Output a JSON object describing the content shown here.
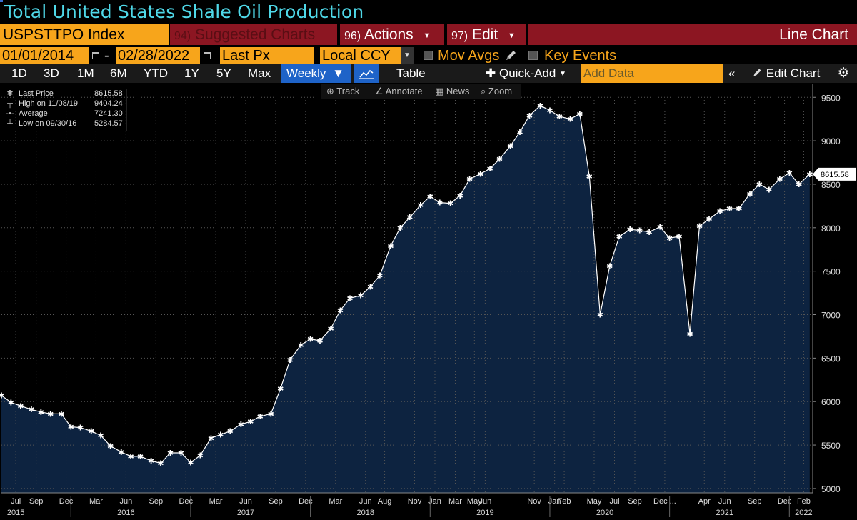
{
  "header": {
    "title": "Total United States Shale Oil Production"
  },
  "toolbar": {
    "ticker": "USPSTTPO Index",
    "suggested_num": "94)",
    "suggested_label": "Suggested Charts",
    "actions_num": "96)",
    "actions_label": "Actions",
    "edit_num": "97)",
    "edit_label": "Edit",
    "chart_type_label": "Line Chart"
  },
  "controls": {
    "start_date": "01/01/2014",
    "date_separator": "-",
    "end_date": "02/28/2022",
    "field": "Last Px",
    "currency": "Local CCY",
    "mov_avgs": "Mov Avgs",
    "key_events": "Key Events"
  },
  "range_bar": {
    "buttons": [
      "1D",
      "3D",
      "1M",
      "6M",
      "YTD",
      "1Y",
      "5Y",
      "Max"
    ],
    "frequency": "Weekly",
    "table_label": "Table",
    "quick_add": "Quick-Add",
    "add_data_placeholder": "Add Data",
    "edit_chart": "Edit Chart"
  },
  "legend": {
    "rows": [
      {
        "icon": "✱",
        "label": "Last Price",
        "value": "8615.58"
      },
      {
        "icon": "┬",
        "label": "High on 11/08/19",
        "value": "9404.24"
      },
      {
        "icon": "-•-",
        "label": "Average",
        "value": "7241.30"
      },
      {
        "icon": "┴",
        "label": "Low on 09/30/16",
        "value": "5284.57"
      }
    ]
  },
  "chart_tools": {
    "track": "Track",
    "annotate": "Annotate",
    "news": "News",
    "zoom": "Zoom"
  },
  "colors": {
    "area_fill": "#0d2340",
    "line": "#ffffff",
    "accent_orange": "#f7a51b",
    "bar_red": "#8c1622",
    "title_cyan": "#4fd8e8",
    "selected_blue": "#1e63c8"
  },
  "chart_data": {
    "type": "area",
    "title": "Total United States Shale Oil Production",
    "ylim": [
      4950,
      9650
    ],
    "y_ticks": [
      5000,
      5500,
      6000,
      6500,
      7000,
      7500,
      8000,
      8500,
      9000,
      9500
    ],
    "last_value_label": "8615.58",
    "x_month_ticks": [
      {
        "label": "Jul",
        "date": 2015.54
      },
      {
        "label": "Sep",
        "date": 2015.71
      },
      {
        "label": "Dec",
        "date": 2015.96
      },
      {
        "label": "Mar",
        "date": 2016.21
      },
      {
        "label": "Jun",
        "date": 2016.46
      },
      {
        "label": "Sep",
        "date": 2016.71
      },
      {
        "label": "Dec",
        "date": 2016.96
      },
      {
        "label": "Mar",
        "date": 2017.21
      },
      {
        "label": "Jun",
        "date": 2017.46
      },
      {
        "label": "Sep",
        "date": 2017.71
      },
      {
        "label": "Dec",
        "date": 2017.96
      },
      {
        "label": "Mar",
        "date": 2018.21
      },
      {
        "label": "Jun",
        "date": 2018.46
      },
      {
        "label": "Aug",
        "date": 2018.62
      },
      {
        "label": "Nov",
        "date": 2018.87
      },
      {
        "label": "Jan",
        "date": 2019.04
      },
      {
        "label": "Mar",
        "date": 2019.21
      },
      {
        "label": "May",
        "date": 2019.37
      },
      {
        "label": "Jun",
        "date": 2019.46
      },
      {
        "label": "Nov",
        "date": 2019.87
      },
      {
        "label": "Jan",
        "date": 2020.04
      },
      {
        "label": "Feb",
        "date": 2020.12
      },
      {
        "label": "May",
        "date": 2020.37
      },
      {
        "label": "Jul",
        "date": 2020.54
      },
      {
        "label": "Sep",
        "date": 2020.71
      },
      {
        "label": "Dec ...",
        "date": 2020.96
      },
      {
        "label": "Apr",
        "date": 2021.29
      },
      {
        "label": "Jun",
        "date": 2021.46
      },
      {
        "label": "Sep",
        "date": 2021.71
      },
      {
        "label": "Dec",
        "date": 2021.96
      },
      {
        "label": "Feb",
        "date": 2022.12
      }
    ],
    "x_year_ticks": [
      {
        "label": "2015",
        "date": 2015.54
      },
      {
        "label": "2016",
        "date": 2016.46
      },
      {
        "label": "2017",
        "date": 2017.46
      },
      {
        "label": "2018",
        "date": 2018.46
      },
      {
        "label": "2019",
        "date": 2019.46
      },
      {
        "label": "2020",
        "date": 2020.46
      },
      {
        "label": "2021",
        "date": 2021.46
      },
      {
        "label": "2022",
        "date": 2022.12
      }
    ],
    "x_year_separators": [
      2016.0,
      2017.0,
      2018.0,
      2019.0,
      2020.0,
      2021.0,
      2022.0
    ],
    "x_grid": [
      2015.54,
      2015.71,
      2015.96,
      2016.21,
      2016.46,
      2016.71,
      2016.96,
      2017.21,
      2017.46,
      2017.71,
      2017.96,
      2018.21,
      2018.46,
      2018.62,
      2018.87,
      2019.04,
      2019.21,
      2019.37,
      2019.46,
      2019.87,
      2020.04,
      2020.12,
      2020.37,
      2020.54,
      2020.71,
      2020.96,
      2021.29,
      2021.46,
      2021.71,
      2021.96,
      2022.12
    ],
    "series": [
      {
        "points": [
          [
            2015.42,
            6070
          ],
          [
            2015.5,
            5990
          ],
          [
            2015.58,
            5950
          ],
          [
            2015.67,
            5910
          ],
          [
            2015.75,
            5880
          ],
          [
            2015.83,
            5860
          ],
          [
            2015.92,
            5860
          ],
          [
            2016.0,
            5710
          ],
          [
            2016.08,
            5700
          ],
          [
            2016.17,
            5660
          ],
          [
            2016.25,
            5610
          ],
          [
            2016.33,
            5490
          ],
          [
            2016.42,
            5420
          ],
          [
            2016.5,
            5370
          ],
          [
            2016.58,
            5370
          ],
          [
            2016.67,
            5320
          ],
          [
            2016.75,
            5290
          ],
          [
            2016.83,
            5410
          ],
          [
            2016.92,
            5410
          ],
          [
            2017.0,
            5300
          ],
          [
            2017.08,
            5380
          ],
          [
            2017.17,
            5580
          ],
          [
            2017.25,
            5620
          ],
          [
            2017.33,
            5660
          ],
          [
            2017.42,
            5740
          ],
          [
            2017.5,
            5770
          ],
          [
            2017.58,
            5830
          ],
          [
            2017.67,
            5860
          ],
          [
            2017.75,
            6150
          ],
          [
            2017.83,
            6480
          ],
          [
            2017.92,
            6650
          ],
          [
            2018.0,
            6720
          ],
          [
            2018.08,
            6700
          ],
          [
            2018.17,
            6840
          ],
          [
            2018.25,
            7050
          ],
          [
            2018.33,
            7190
          ],
          [
            2018.42,
            7220
          ],
          [
            2018.5,
            7320
          ],
          [
            2018.58,
            7450
          ],
          [
            2018.67,
            7790
          ],
          [
            2018.75,
            8000
          ],
          [
            2018.83,
            8120
          ],
          [
            2018.92,
            8260
          ],
          [
            2019.0,
            8360
          ],
          [
            2019.08,
            8290
          ],
          [
            2019.17,
            8280
          ],
          [
            2019.25,
            8370
          ],
          [
            2019.33,
            8560
          ],
          [
            2019.42,
            8620
          ],
          [
            2019.5,
            8680
          ],
          [
            2019.58,
            8790
          ],
          [
            2019.67,
            8940
          ],
          [
            2019.75,
            9100
          ],
          [
            2019.83,
            9290
          ],
          [
            2019.92,
            9404
          ],
          [
            2020.0,
            9350
          ],
          [
            2020.08,
            9280
          ],
          [
            2020.17,
            9250
          ],
          [
            2020.25,
            9310
          ],
          [
            2020.33,
            8590
          ],
          [
            2020.42,
            7000
          ],
          [
            2020.5,
            7560
          ],
          [
            2020.58,
            7900
          ],
          [
            2020.67,
            7980
          ],
          [
            2020.75,
            7970
          ],
          [
            2020.83,
            7950
          ],
          [
            2020.92,
            8010
          ],
          [
            2021.0,
            7880
          ],
          [
            2021.08,
            7900
          ],
          [
            2021.17,
            6780
          ],
          [
            2021.25,
            8020
          ],
          [
            2021.33,
            8100
          ],
          [
            2021.42,
            8190
          ],
          [
            2021.5,
            8220
          ],
          [
            2021.58,
            8220
          ],
          [
            2021.67,
            8390
          ],
          [
            2021.75,
            8500
          ],
          [
            2021.83,
            8440
          ],
          [
            2021.92,
            8560
          ],
          [
            2022.0,
            8630
          ],
          [
            2022.08,
            8500
          ],
          [
            2022.17,
            8616
          ]
        ]
      }
    ]
  }
}
